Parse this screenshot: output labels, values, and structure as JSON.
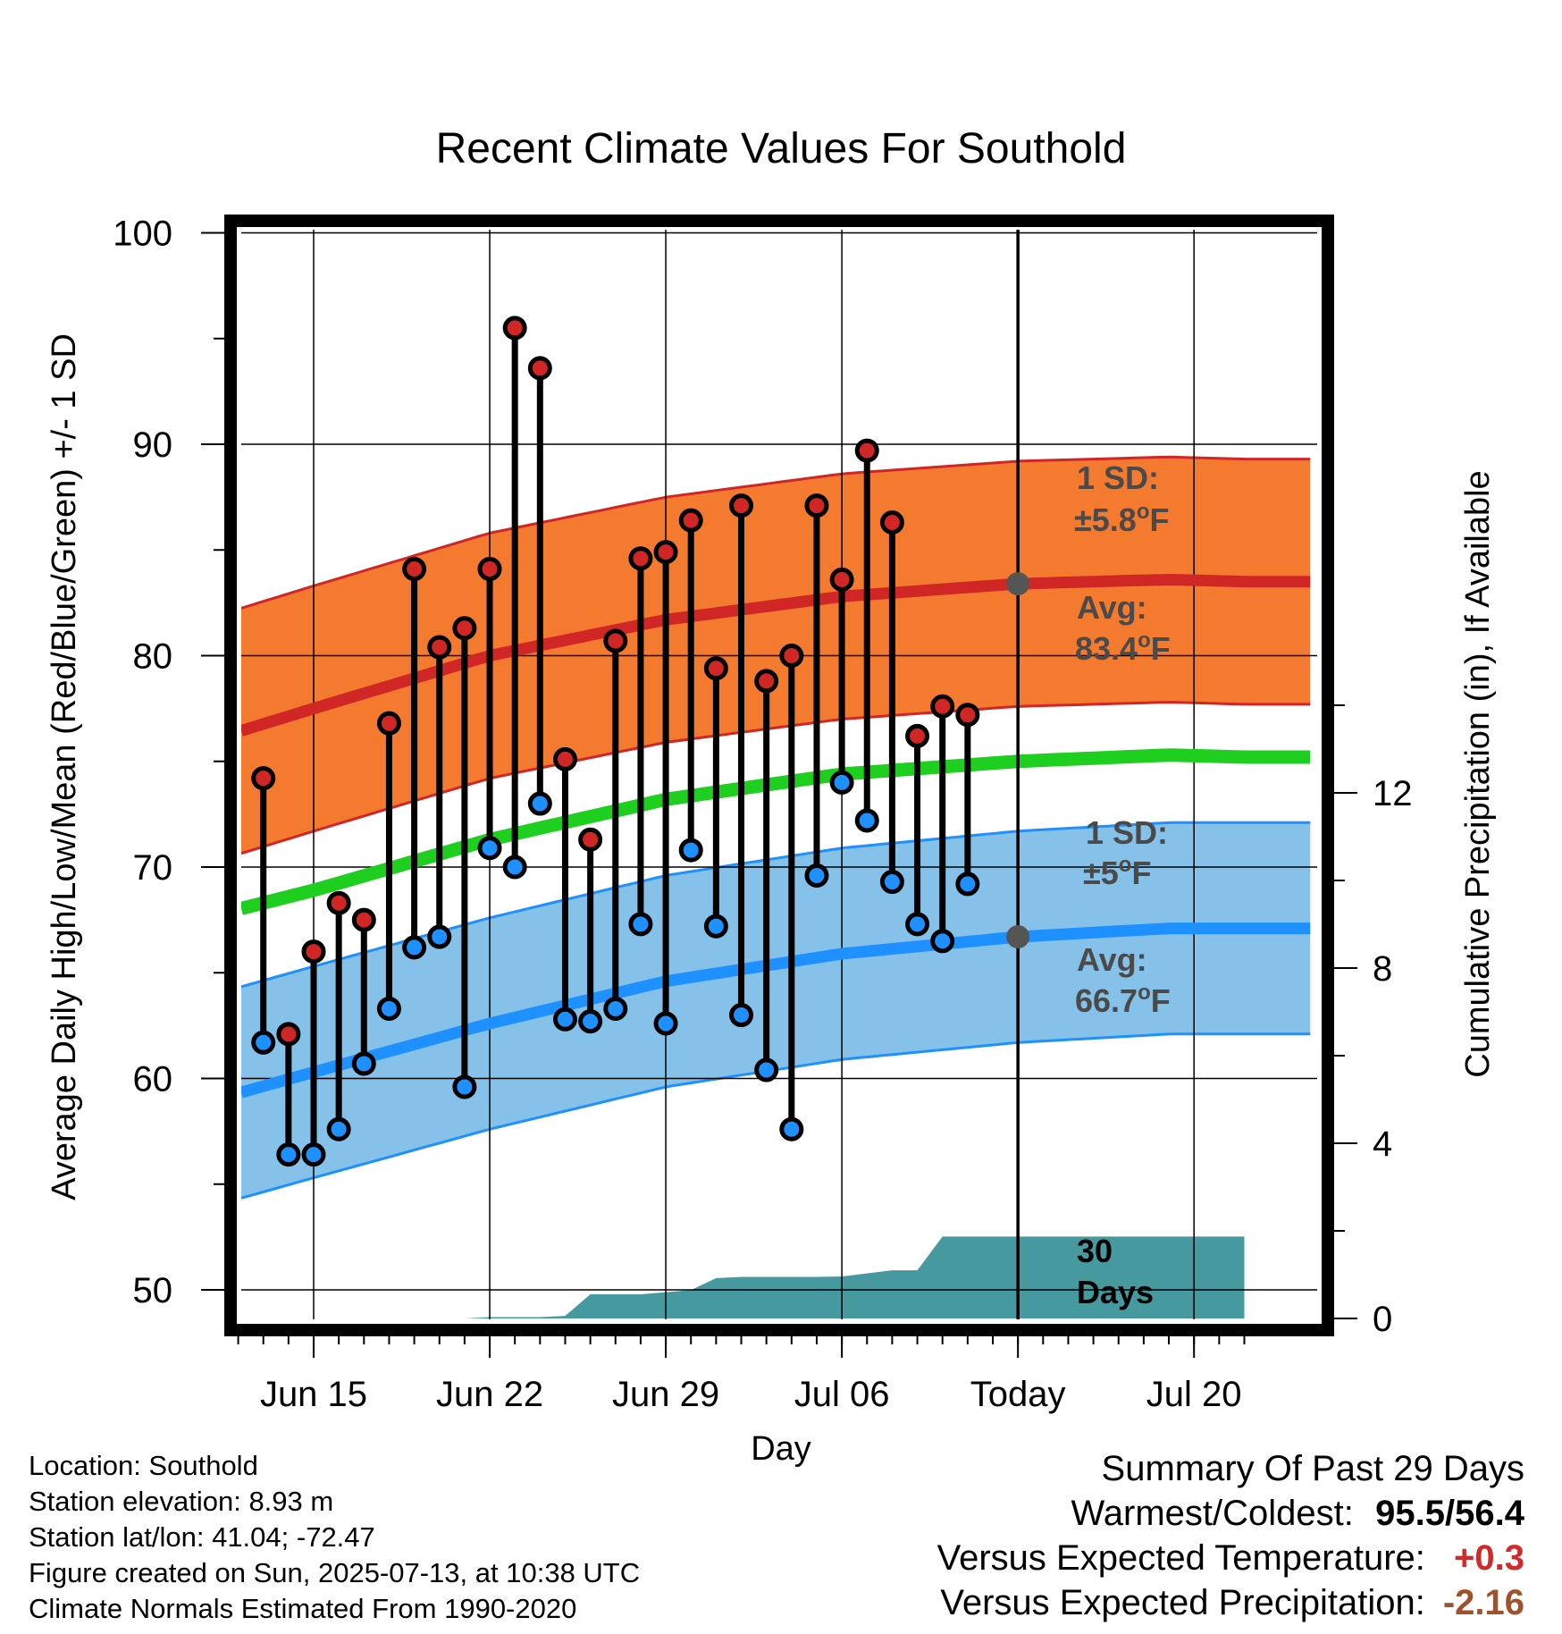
{
  "chart_data": {
    "type": "scatter",
    "title": "Recent Climate Values For Southold",
    "xlabel": "Day",
    "ylabel": "Average Daily High/Low/Mean (Red/Blue/Green) +/- 1 SD",
    "y2label": "Cumulative Precipitation (in), If Available",
    "ylim": [
      49,
      101
    ],
    "y2lim": [
      0,
      15.6
    ],
    "y_ticks": [
      "50",
      "60",
      "70",
      "80",
      "90",
      "100"
    ],
    "y2_ticks": [
      "0",
      "4",
      "8",
      "12"
    ],
    "x_ticks": [
      {
        "day": 15,
        "label": "Jun 15"
      },
      {
        "day": 22,
        "label": "Jun 22"
      },
      {
        "day": 29,
        "label": "Jun 29"
      },
      {
        "day": 36,
        "label": "Jul 06"
      },
      {
        "day": 43,
        "label": "Today"
      },
      {
        "day": 50,
        "label": "Jul 20"
      }
    ],
    "grid": true,
    "today_day": 43,
    "highs": [
      74.2,
      62.1,
      66.0,
      68.3,
      67.5,
      76.8,
      84.1,
      80.4,
      81.3,
      84.1,
      95.5,
      93.6,
      75.1,
      71.3,
      80.7,
      84.6,
      84.9,
      86.4,
      79.4,
      87.1,
      78.8,
      80.0,
      87.1,
      83.6,
      89.7,
      86.3,
      76.2,
      77.6,
      77.2
    ],
    "lows": [
      61.7,
      56.4,
      56.4,
      57.6,
      60.7,
      63.3,
      66.2,
      66.7,
      59.6,
      70.9,
      70.0,
      73.0,
      62.8,
      62.7,
      63.3,
      67.3,
      62.6,
      70.8,
      67.2,
      63.0,
      60.4,
      57.6,
      69.6,
      74.0,
      72.2,
      69.3,
      67.3,
      66.5,
      69.2
    ],
    "normal_high": {
      "days": [
        12,
        15,
        22,
        29,
        36,
        43,
        49,
        52
      ],
      "avg": [
        76.4,
        77.5,
        80.0,
        81.7,
        82.8,
        83.4,
        83.6,
        83.5
      ],
      "sd": 5.8,
      "avg_label": "Avg:",
      "avg_value": "83.4",
      "sd_label": "1 SD:",
      "sd_value": "±5.8",
      "unit": "F",
      "degree": "o"
    },
    "normal_low": {
      "days": [
        12,
        15,
        22,
        29,
        36,
        43,
        49,
        52
      ],
      "avg": [
        59.3,
        60.3,
        62.6,
        64.6,
        65.9,
        66.7,
        67.1,
        67.1
      ],
      "sd": 5.0,
      "avg_label": "Avg:",
      "avg_value": "66.7",
      "sd_label": "1 SD:",
      "sd_value": "±5",
      "unit": "F",
      "degree": "o"
    },
    "normal_mean": {
      "days": [
        12,
        15,
        22,
        29,
        36,
        43,
        49,
        52
      ],
      "avg": [
        68.0,
        68.9,
        71.3,
        73.2,
        74.4,
        75.0,
        75.3,
        75.2
      ]
    },
    "precip_cumulative": {
      "days": [
        12,
        21,
        22,
        24,
        25,
        26,
        28,
        30,
        31,
        32,
        35,
        36,
        38,
        39,
        40,
        52
      ],
      "values": [
        0,
        0,
        0.03,
        0.03,
        0.06,
        0.55,
        0.55,
        0.65,
        0.92,
        0.95,
        0.95,
        0.96,
        1.1,
        1.1,
        1.87,
        1.87
      ]
    },
    "precip_label_line1": "30",
    "precip_label_line2": "Days",
    "colors": {
      "high_band": "#f47a30",
      "high_line": "#d02626",
      "low_band": "#85c1e9",
      "low_line": "#1e90ff",
      "mean_line": "#1fcf1f",
      "precip": "#469a9f",
      "high_dot": "#d02626",
      "low_dot": "#1e90ff",
      "marker": "#555555"
    }
  },
  "info": {
    "location": "Location: Southold",
    "elevation": "Station elevation: 8.93 m",
    "latlon": "Station lat/lon: 41.04; -72.47",
    "created": "Figure created on Sun, 2025-07-13, at 10:38 UTC",
    "normals": "Climate Normals Estimated From 1990-2020"
  },
  "summary": {
    "title": "Summary Of Past 29 Days",
    "warm_cold_label": "Warmest/Coldest:",
    "warm_cold_value": "95.5/56.4",
    "temp_label": "Versus Expected Temperature:",
    "temp_value": "+0.3",
    "precip_label": "Versus Expected Precipitation:",
    "precip_value": "-2.16"
  }
}
